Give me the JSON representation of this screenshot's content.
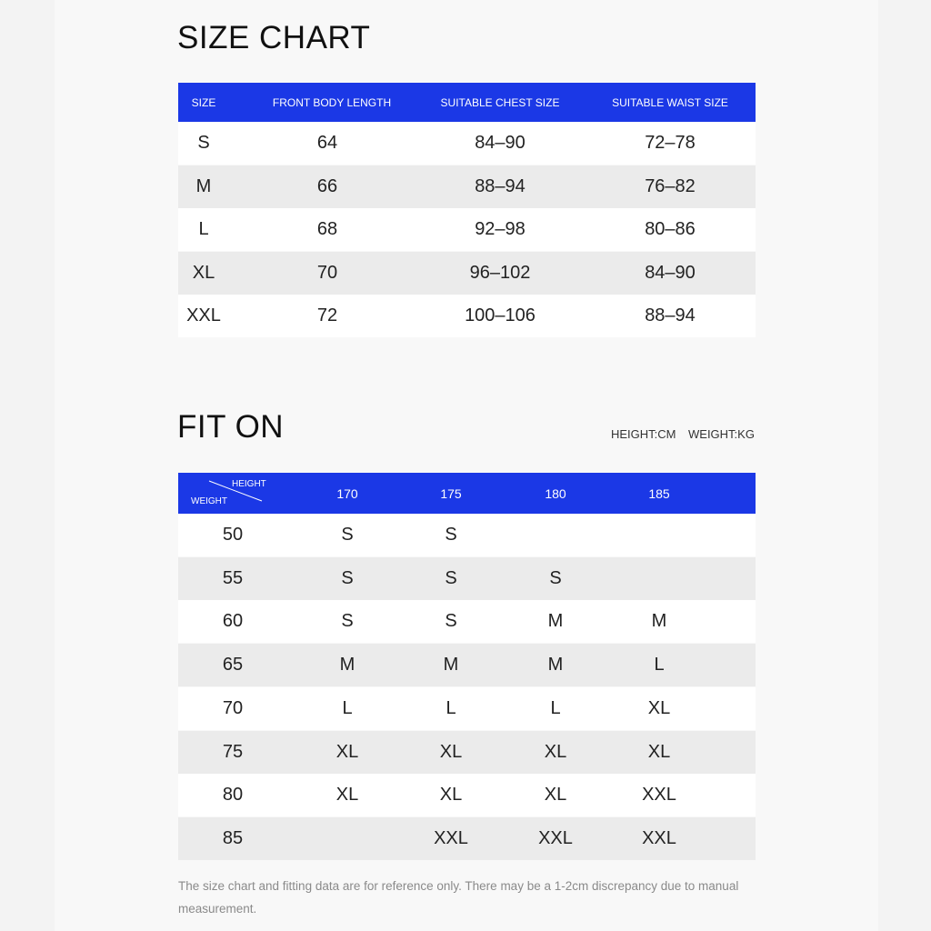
{
  "size_chart": {
    "title": "SIZE CHART",
    "headers": [
      "SIZE",
      "FRONT BODY LENGTH",
      "SUITABLE CHEST SIZE",
      "SUITABLE WAIST SIZE"
    ],
    "rows": [
      [
        "S",
        64,
        "84–90",
        "72–78"
      ],
      [
        "M",
        66,
        "88–94",
        "76–82"
      ],
      [
        "L",
        68,
        "92–98",
        "80–86"
      ],
      [
        "XL",
        70,
        "96–102",
        "84–90"
      ],
      [
        "XXL",
        72,
        "100–106",
        "88–94"
      ]
    ]
  },
  "fit_on": {
    "title": "FIT ON",
    "units": [
      "HEIGHT:CM",
      "WEIGHT:KG"
    ],
    "corner": {
      "height": "HEIGHT",
      "weight": "WEIGHT"
    },
    "heights": [
      170,
      175,
      180,
      185
    ],
    "rows": [
      {
        "weight": 50,
        "sizes": [
          "S",
          "S",
          null,
          null
        ]
      },
      {
        "weight": 55,
        "sizes": [
          "S",
          "S",
          "S",
          null
        ]
      },
      {
        "weight": 60,
        "sizes": [
          "S",
          "S",
          "M",
          "M"
        ]
      },
      {
        "weight": 65,
        "sizes": [
          "M",
          "M",
          "M",
          "L"
        ]
      },
      {
        "weight": 70,
        "sizes": [
          "L",
          "L",
          "L",
          "XL"
        ]
      },
      {
        "weight": 75,
        "sizes": [
          "XL",
          "XL",
          "XL",
          "XL"
        ]
      },
      {
        "weight": 80,
        "sizes": [
          "XL",
          "XL",
          "XL",
          "XXL"
        ]
      },
      {
        "weight": 85,
        "sizes": [
          null,
          "XXL",
          "XXL",
          "XXL"
        ]
      }
    ]
  },
  "note": "The size chart and fitting data are for reference only. There may be a 1-2cm discrepancy due to manual measurement."
}
